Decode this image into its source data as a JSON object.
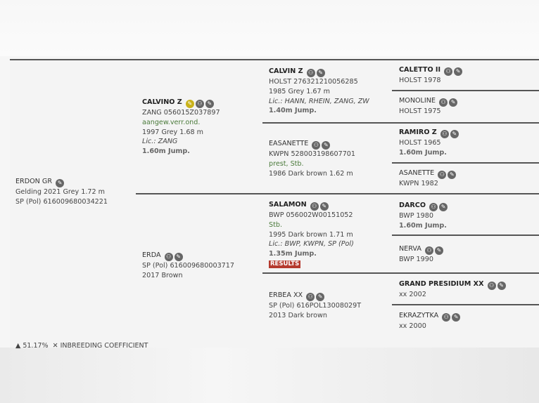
{
  "horse": {
    "name": "ERDON GR",
    "l1": "Gelding 2021 Grey 1.72 m",
    "l2": "SP (Pol) 616009680034221"
  },
  "sire": {
    "name": "CALVINO Z",
    "l1": "ZANG 056015Z037897",
    "l2": "aangew.verr.ond.",
    "l3": "1997 Grey 1.68 m",
    "l4": "Lic.: ZANG",
    "l5": "1.60m Jump."
  },
  "dam": {
    "name": "ERDA",
    "l1": "SP (Pol) 616009680003717",
    "l2": "2017 Brown"
  },
  "ss": {
    "name": "CALVIN Z",
    "l1": "HOLST 276321210056285",
    "l2": "1985 Grey 1.67 m",
    "l3": "Lic.: HANN, RHEIN, ZANG, ZW",
    "l4": "1.40m Jump."
  },
  "sd": {
    "name": "EASANETTE",
    "l1": "KWPN 528003198607701",
    "l2": "prest, Stb.",
    "l3": "1986 Dark brown 1.62 m"
  },
  "ds": {
    "name": "SALAMON",
    "l1": "BWP 056002W00151052",
    "l2": "Stb.",
    "l3": "1995 Dark brown 1.71 m",
    "l4": "Lic.: BWP, KWPN, SP (Pol)",
    "l5": "1.35m Jump.",
    "results": "RESULTS"
  },
  "dd": {
    "name": "ERBEA XX",
    "l1": "SP (Pol) 616POL13008029T",
    "l2": "2013 Dark brown"
  },
  "g4": [
    {
      "name": "CALETTO II",
      "l1": "HOLST 1978"
    },
    {
      "name": "MONOLINE",
      "l1": "HOLST 1975"
    },
    {
      "name": "RAMIRO Z",
      "l1": "HOLST 1965",
      "l2": "1.60m Jump."
    },
    {
      "name": "ASANETTE",
      "l1": "KWPN 1982"
    },
    {
      "name": "DARCO",
      "l1": "BWP 1980",
      "l2": "1.60m Jump."
    },
    {
      "name": "NERVA",
      "l1": "BWP 1990"
    },
    {
      "name": "GRAND PRESIDIUM XX",
      "l1": "xx 2002"
    },
    {
      "name": "EKRAZYTKA",
      "l1": "xx 2000"
    }
  ],
  "footer": {
    "percent": "51.17%",
    "label": "INBREEDING COEFFICIENT"
  },
  "colors": {
    "accent_green": "#4a7a3a",
    "results_red": "#b53a2e",
    "icon_yellow": "#c9b21a"
  }
}
